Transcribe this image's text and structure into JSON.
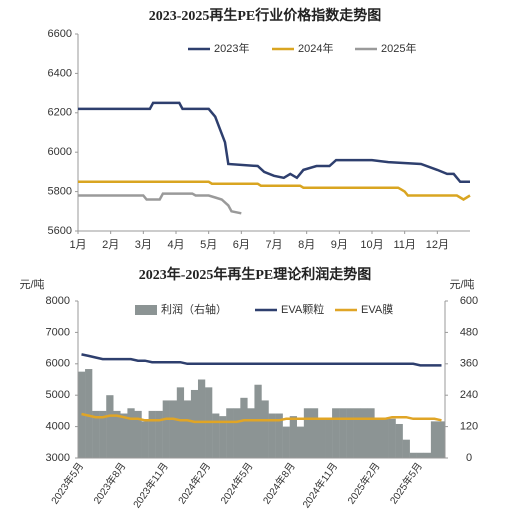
{
  "chart_data": [
    {
      "type": "line",
      "title": "2023-2025再生PE行业价格指数走势图",
      "xlim": [
        1,
        13
      ],
      "xticks": [
        {
          "value": 1,
          "label": "1月"
        },
        {
          "value": 2,
          "label": "2月"
        },
        {
          "value": 3,
          "label": "3月"
        },
        {
          "value": 4,
          "label": "4月"
        },
        {
          "value": 5,
          "label": "5月"
        },
        {
          "value": 6,
          "label": "6月"
        },
        {
          "value": 7,
          "label": "7月"
        },
        {
          "value": 8,
          "label": "8月"
        },
        {
          "value": 9,
          "label": "9月"
        },
        {
          "value": 10,
          "label": "10月"
        },
        {
          "value": 11,
          "label": "11月"
        },
        {
          "value": 12,
          "label": "12月"
        }
      ],
      "ylim": [
        5600,
        6600
      ],
      "yticks": [
        5600,
        5800,
        6000,
        6200,
        6400,
        6600
      ],
      "grid": false,
      "series": [
        {
          "name": "2023年",
          "color": "#2e3f6e",
          "x": [
            1,
            3.2,
            3.3,
            4.1,
            4.2,
            5.0,
            5.2,
            5.5,
            5.6,
            6.5,
            6.7,
            7.0,
            7.3,
            7.5,
            7.7,
            7.9,
            8.3,
            8.7,
            8.9,
            10.0,
            10.5,
            11.5,
            12.0,
            12.3,
            12.5,
            12.7,
            13.0
          ],
          "values": [
            6220,
            6220,
            6250,
            6250,
            6220,
            6220,
            6180,
            6050,
            5940,
            5930,
            5900,
            5880,
            5870,
            5890,
            5870,
            5910,
            5930,
            5930,
            5960,
            5960,
            5950,
            5940,
            5910,
            5890,
            5890,
            5850,
            5850
          ]
        },
        {
          "name": "2024年",
          "color": "#d9a521",
          "x": [
            1,
            5.0,
            5.1,
            6.5,
            6.6,
            7.8,
            7.9,
            10.8,
            10.9,
            11.0,
            11.1,
            12.6,
            12.7,
            12.8,
            13.0
          ],
          "values": [
            5850,
            5850,
            5840,
            5840,
            5830,
            5830,
            5820,
            5820,
            5810,
            5800,
            5780,
            5780,
            5770,
            5760,
            5780
          ]
        },
        {
          "name": "2025年",
          "color": "#9a9a9a",
          "x": [
            1,
            3.0,
            3.1,
            3.5,
            3.6,
            4.5,
            4.6,
            5.0,
            5.2,
            5.4,
            5.6,
            5.7,
            6.0
          ],
          "values": [
            5780,
            5780,
            5760,
            5760,
            5790,
            5790,
            5780,
            5780,
            5770,
            5760,
            5730,
            5700,
            5690
          ]
        }
      ]
    },
    {
      "type": "combo",
      "title": "2023年-2025年再生PE理论利润走势图",
      "y_label": "元/吨",
      "y2_label": "元/吨",
      "categories": [
        "2023年5月",
        null,
        null,
        null,
        null,
        null,
        "2023年8月",
        null,
        null,
        null,
        null,
        null,
        "2023年11月",
        null,
        null,
        null,
        null,
        null,
        "2024年2月",
        null,
        null,
        null,
        null,
        null,
        "2024年5月",
        null,
        null,
        null,
        null,
        null,
        "2024年8月",
        null,
        null,
        null,
        null,
        null,
        "2024年11月",
        null,
        null,
        null,
        null,
        null,
        "2025年2月",
        null,
        null,
        null,
        null,
        null,
        "2025年5月",
        null,
        null,
        null
      ],
      "ylim": [
        3000,
        8000
      ],
      "yticks": [
        3000,
        4000,
        5000,
        6000,
        7000,
        8000
      ],
      "y2lim": [
        0,
        600
      ],
      "y2ticks": [
        0,
        120,
        240,
        360,
        480,
        600
      ],
      "grid": false,
      "series": [
        {
          "name": "利润（右轴）",
          "type": "bar",
          "axis": "y2",
          "color": "#8c9494",
          "values": [
            330,
            340,
            180,
            180,
            240,
            180,
            170,
            190,
            180,
            140,
            180,
            180,
            220,
            220,
            270,
            220,
            260,
            300,
            270,
            170,
            160,
            190,
            190,
            230,
            190,
            280,
            220,
            170,
            170,
            120,
            160,
            120,
            190,
            190,
            150,
            150,
            190,
            190,
            190,
            190,
            190,
            190,
            150,
            150,
            150,
            130,
            70,
            20,
            20,
            20,
            140,
            140
          ]
        },
        {
          "name": "EVA颗粒",
          "type": "line",
          "color": "#2e3f6e",
          "values": [
            6300,
            6250,
            6200,
            6150,
            6150,
            6150,
            6150,
            6150,
            6100,
            6100,
            6050,
            6050,
            6050,
            6050,
            6050,
            6000,
            6000,
            6000,
            6000,
            6000,
            6000,
            6000,
            6000,
            6000,
            6000,
            6000,
            6000,
            6000,
            6000,
            6000,
            6000,
            6000,
            6000,
            6000,
            6000,
            6000,
            6000,
            6000,
            6000,
            6000,
            6000,
            6000,
            6000,
            6000,
            6000,
            6000,
            6000,
            6000,
            5950,
            5950,
            5950,
            5950
          ]
        },
        {
          "name": "EVA膜",
          "type": "line",
          "color": "#e0a526",
          "values": [
            4400,
            4350,
            4300,
            4300,
            4350,
            4350,
            4300,
            4250,
            4250,
            4200,
            4200,
            4200,
            4250,
            4250,
            4200,
            4200,
            4150,
            4150,
            4150,
            4150,
            4150,
            4150,
            4150,
            4200,
            4200,
            4200,
            4200,
            4200,
            4200,
            4250,
            4250,
            4250,
            4250,
            4250,
            4250,
            4250,
            4250,
            4250,
            4250,
            4250,
            4250,
            4250,
            4250,
            4250,
            4300,
            4300,
            4300,
            4250,
            4250,
            4250,
            4250,
            4200
          ]
        }
      ]
    }
  ]
}
